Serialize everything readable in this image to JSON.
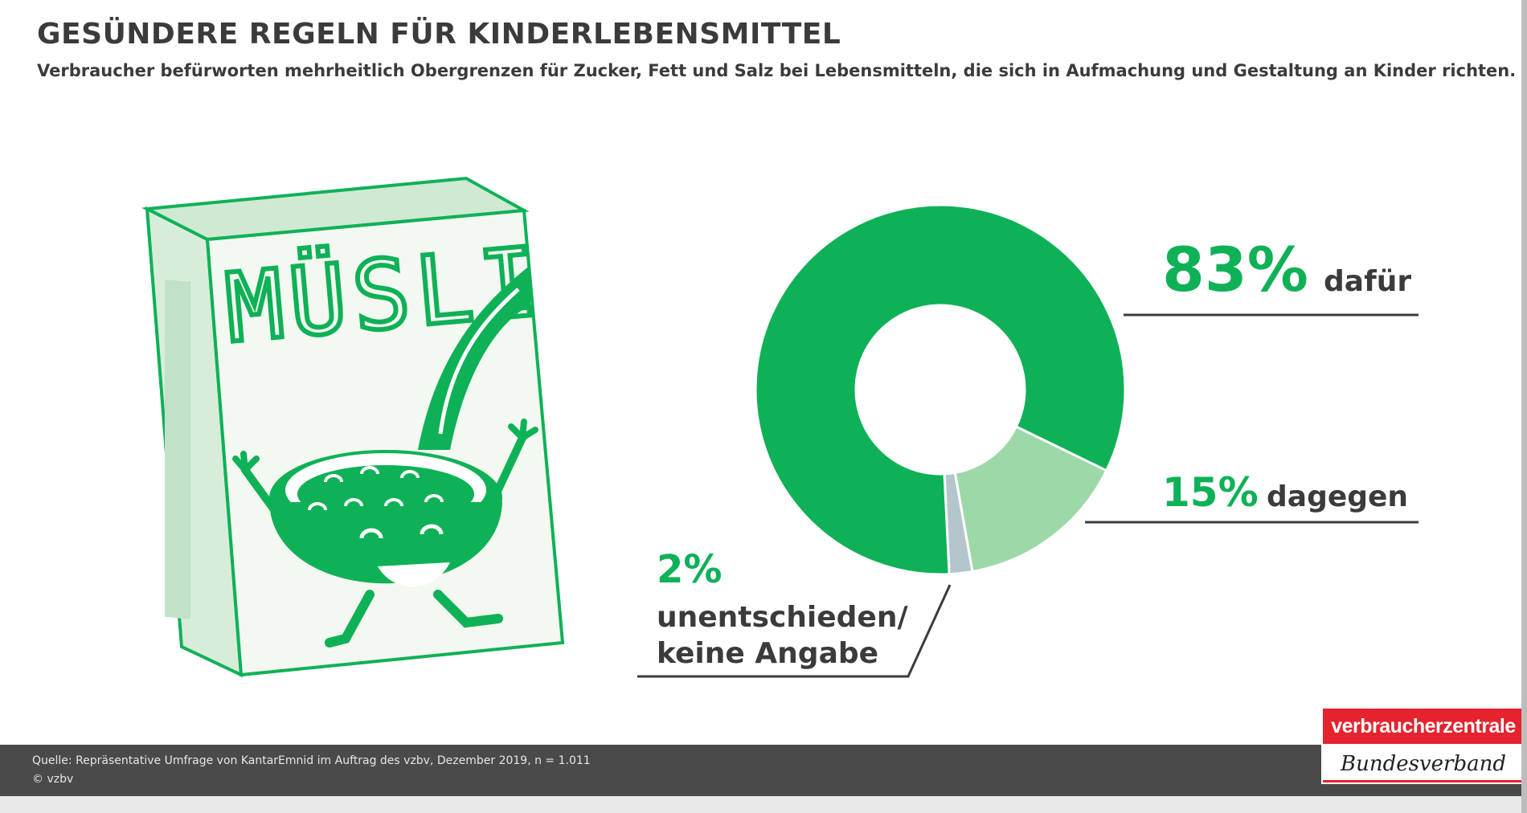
{
  "header": {
    "title": "GESÜNDERE REGELN FÜR KINDERLEBENSMITTEL",
    "subtitle": "Verbraucher befürworten mehrheitlich Obergrenzen für Zucker, Fett und Salz bei Lebensmitteln, die sich in Aufmachung und Gestaltung an Kinder richten."
  },
  "illustration": {
    "box_text": "MÜSLI",
    "icon": "cereal-box-with-smiling-bowl-illustration"
  },
  "chart_data": {
    "type": "pie",
    "style": "donut",
    "categories": [
      "dafür",
      "dagegen",
      "unentschieden/ keine Angabe"
    ],
    "values": [
      83,
      15,
      2
    ],
    "value_labels": [
      "83%",
      "15%",
      "2%"
    ],
    "label_lines": [
      [
        "dafür"
      ],
      [
        "dagegen"
      ],
      [
        "unentschieden/",
        "keine Angabe"
      ]
    ],
    "colors": [
      "#0fb157",
      "#9dd9a8",
      "#b5c5cc"
    ],
    "title": "",
    "legend": "none"
  },
  "footer": {
    "source": "Quelle: Repräsentative Umfrage von KantarEmnid im Auftrag des vzbv, Dezember 2019, n = 1.011",
    "copyright": "© vzbv"
  },
  "logo": {
    "line1": "verbraucherzentrale",
    "line2": "Bundesverband"
  },
  "colors": {
    "accent_green": "#0fb157",
    "light_green": "#9dd9a8",
    "grey_slice": "#b5c5cc",
    "text_dark": "#3b3b3b",
    "footer_bg": "#4a4a4a",
    "logo_red": "#e4232e"
  }
}
